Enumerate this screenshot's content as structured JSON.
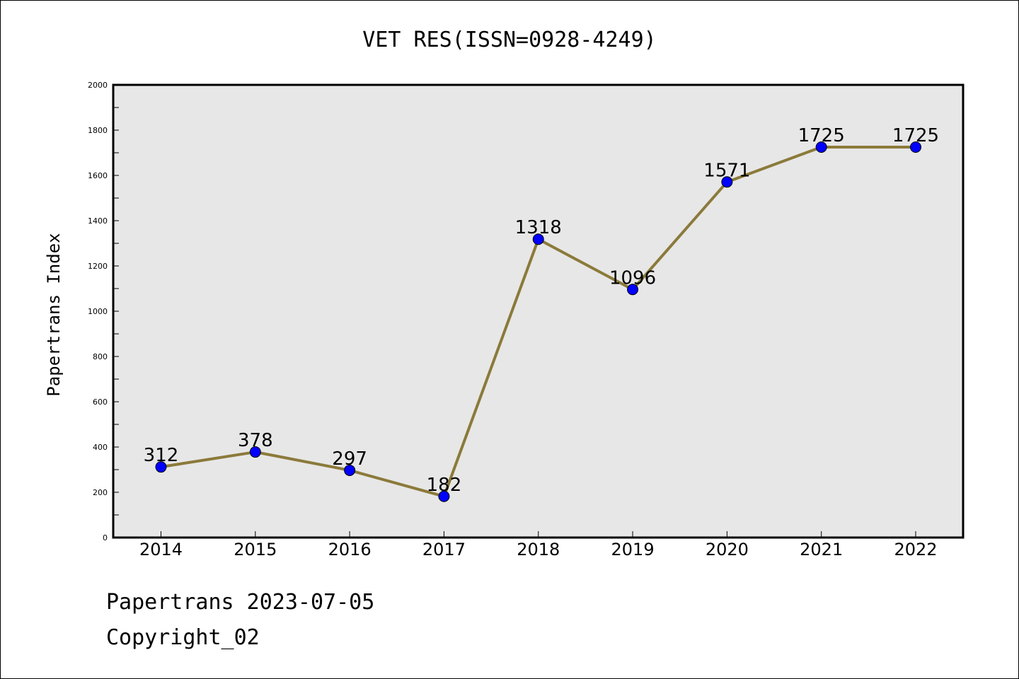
{
  "chart_data": {
    "type": "line",
    "title": "VET RES(ISSN=0928-4249)",
    "xlabel": "",
    "ylabel": "Papertrans Index",
    "categories": [
      "2014",
      "2015",
      "2016",
      "2017",
      "2018",
      "2019",
      "2020",
      "2021",
      "2022"
    ],
    "series": [
      {
        "values": [
          312,
          378,
          297,
          182,
          1318,
          1096,
          1571,
          1725,
          1725
        ]
      }
    ],
    "ylim": [
      0,
      2000
    ],
    "yticks": [
      0,
      200,
      400,
      600,
      800,
      1000,
      1200,
      1400,
      1600,
      1800,
      2000
    ],
    "grid": false,
    "colors": {
      "line": "#8b7a3a",
      "marker": "#0000ff",
      "plot_bg": "#e7e7e7"
    }
  },
  "footer": {
    "line1": "Papertrans 2023-07-05",
    "line2": "Copyright_02"
  }
}
